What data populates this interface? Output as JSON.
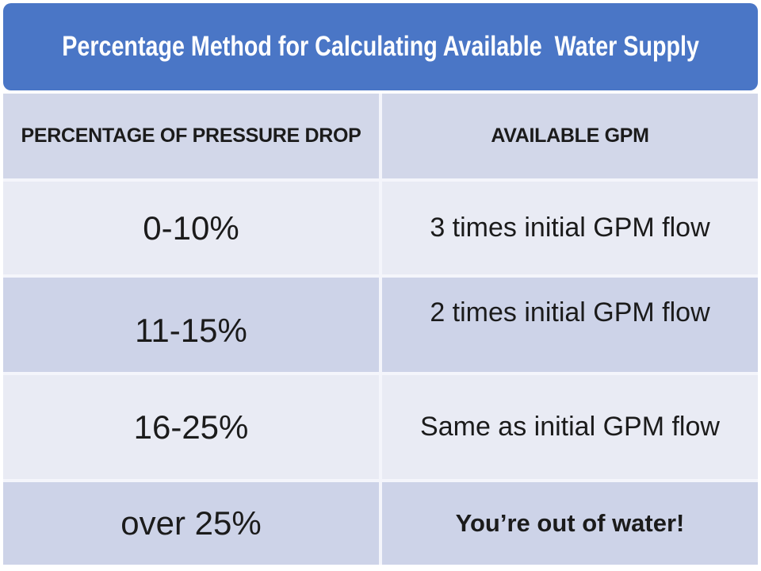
{
  "title": "Percentage Method for Calculating Available  Water Supply",
  "table": {
    "columns": [
      "PERCENTAGE OF PRESSURE DROP",
      "AVAILABLE GPM"
    ],
    "rows": [
      {
        "drop": "0-10%",
        "gpm": "3 times initial GPM flow"
      },
      {
        "drop": "11-15%",
        "gpm": "2 times initial GPM flow"
      },
      {
        "drop": "16-25%",
        "gpm": "Same as initial GPM flow"
      },
      {
        "drop": "over 25%",
        "gpm": "You’re out of water!"
      }
    ]
  },
  "colors": {
    "banner": "#4A76C6",
    "title_text": "#FFFFFF",
    "header_row": "#D2D7E9",
    "row_light": "#E9EBF4",
    "row_dark": "#CDD3E8",
    "divider": "#F4F5FB",
    "text": "#1B1B1B"
  }
}
